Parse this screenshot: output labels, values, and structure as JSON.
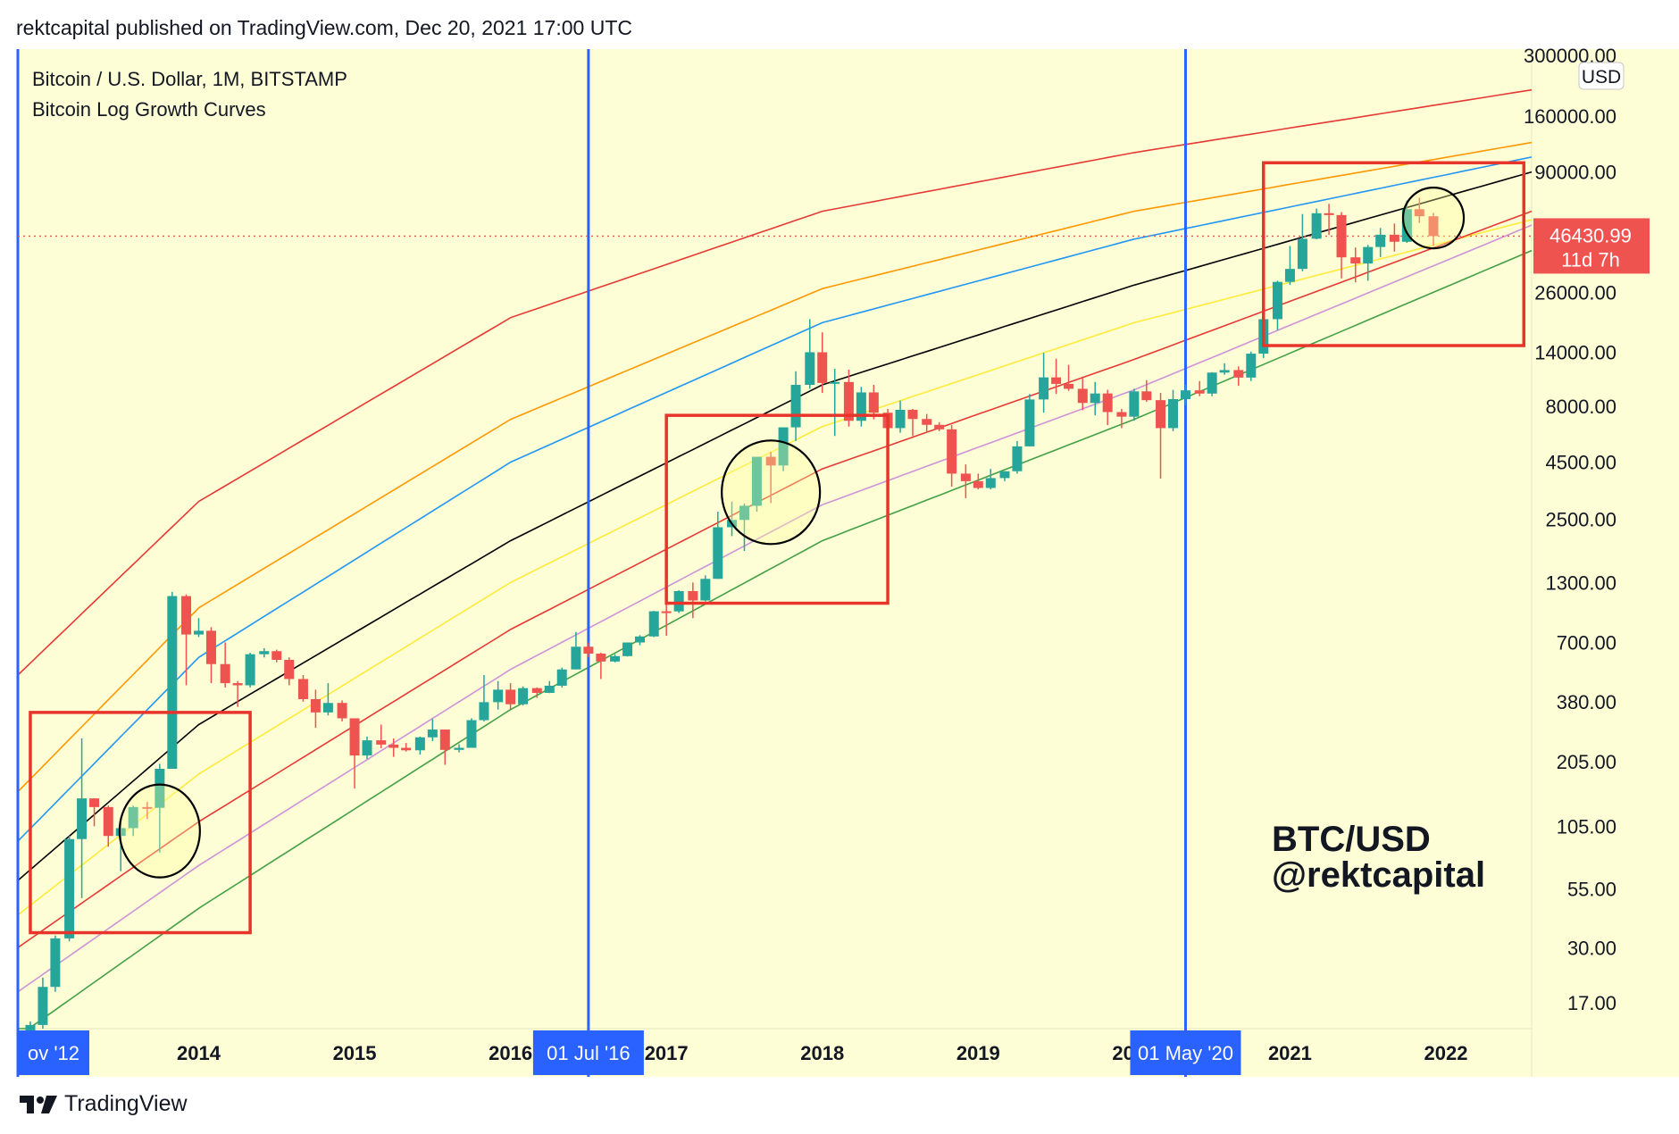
{
  "header": {
    "publish_text": "rektcapital published on TradingView.com, Dec 20, 2021 17:00 UTC"
  },
  "legend": {
    "symbol_line": "Bitcoin / U.S. Dollar, 1M, BITSTAMP",
    "indicator_line": "Bitcoin Log Growth Curves"
  },
  "watermark": {
    "line1": "BTC/USD",
    "line2": "@rektcapital"
  },
  "price_axis": {
    "currency": "USD",
    "ticks": [
      "300000.00",
      "160000.00",
      "90000.00",
      "26000.00",
      "14000.00",
      "8000.00",
      "4500.00",
      "2500.00",
      "1300.00",
      "700.00",
      "380.00",
      "205.00",
      "105.00",
      "55.00",
      "30.00",
      "17.00"
    ],
    "last_price": "46430.99",
    "countdown": "11d 7h"
  },
  "time_axis": {
    "ticks": [
      "2014",
      "2015",
      "2016",
      "2017",
      "2018",
      "2019",
      "2020",
      "2021",
      "2022"
    ],
    "markers": [
      "ov '12",
      "01 Jul '16",
      "01 May '20"
    ]
  },
  "footer": {
    "brand": "TradingView"
  },
  "colors": {
    "background": "#fdfdd6",
    "up": "#26a69a",
    "down": "#ef5350",
    "vline": "#2962ff",
    "box": "#e8342a"
  },
  "chart_data": {
    "type": "candlestick",
    "scale": "log",
    "ylim": [
      13,
      320000
    ],
    "xlim": [
      2012.84,
      2022.55
    ],
    "candles": [
      {
        "t": 2012.92,
        "o": 11,
        "h": 14,
        "l": 10,
        "c": 13.5
      },
      {
        "t": 2013.0,
        "o": 13.5,
        "h": 22,
        "l": 13,
        "c": 20
      },
      {
        "t": 2013.08,
        "o": 20,
        "h": 34,
        "l": 19,
        "c": 33
      },
      {
        "t": 2013.17,
        "o": 33,
        "h": 95,
        "l": 32,
        "c": 92
      },
      {
        "t": 2013.25,
        "o": 92,
        "h": 260,
        "l": 50,
        "c": 140
      },
      {
        "t": 2013.33,
        "o": 140,
        "h": 140,
        "l": 105,
        "c": 128
      },
      {
        "t": 2013.42,
        "o": 128,
        "h": 130,
        "l": 85,
        "c": 95
      },
      {
        "t": 2013.5,
        "o": 95,
        "h": 110,
        "l": 66,
        "c": 103
      },
      {
        "t": 2013.58,
        "o": 103,
        "h": 130,
        "l": 95,
        "c": 128
      },
      {
        "t": 2013.67,
        "o": 128,
        "h": 135,
        "l": 113,
        "c": 127
      },
      {
        "t": 2013.75,
        "o": 127,
        "h": 200,
        "l": 80,
        "c": 190
      },
      {
        "t": 2013.83,
        "o": 190,
        "h": 1180,
        "l": 190,
        "c": 1130
      },
      {
        "t": 2013.92,
        "o": 1130,
        "h": 1150,
        "l": 450,
        "c": 760
      },
      {
        "t": 2014.0,
        "o": 760,
        "h": 900,
        "l": 740,
        "c": 790
      },
      {
        "t": 2014.08,
        "o": 790,
        "h": 820,
        "l": 460,
        "c": 560
      },
      {
        "t": 2014.17,
        "o": 560,
        "h": 700,
        "l": 440,
        "c": 460
      },
      {
        "t": 2014.25,
        "o": 460,
        "h": 470,
        "l": 360,
        "c": 450
      },
      {
        "t": 2014.33,
        "o": 450,
        "h": 630,
        "l": 440,
        "c": 620
      },
      {
        "t": 2014.42,
        "o": 620,
        "h": 660,
        "l": 600,
        "c": 640
      },
      {
        "t": 2014.5,
        "o": 640,
        "h": 650,
        "l": 570,
        "c": 585
      },
      {
        "t": 2014.58,
        "o": 585,
        "h": 600,
        "l": 450,
        "c": 480
      },
      {
        "t": 2014.67,
        "o": 480,
        "h": 500,
        "l": 380,
        "c": 390
      },
      {
        "t": 2014.75,
        "o": 390,
        "h": 430,
        "l": 290,
        "c": 340
      },
      {
        "t": 2014.83,
        "o": 340,
        "h": 460,
        "l": 330,
        "c": 375
      },
      {
        "t": 2014.92,
        "o": 375,
        "h": 385,
        "l": 310,
        "c": 320
      },
      {
        "t": 2015.0,
        "o": 320,
        "h": 320,
        "l": 155,
        "c": 218
      },
      {
        "t": 2015.08,
        "o": 218,
        "h": 265,
        "l": 210,
        "c": 255
      },
      {
        "t": 2015.17,
        "o": 255,
        "h": 300,
        "l": 235,
        "c": 244
      },
      {
        "t": 2015.25,
        "o": 244,
        "h": 260,
        "l": 215,
        "c": 236
      },
      {
        "t": 2015.33,
        "o": 236,
        "h": 248,
        "l": 227,
        "c": 230
      },
      {
        "t": 2015.42,
        "o": 230,
        "h": 265,
        "l": 220,
        "c": 263
      },
      {
        "t": 2015.5,
        "o": 263,
        "h": 318,
        "l": 253,
        "c": 285
      },
      {
        "t": 2015.58,
        "o": 285,
        "h": 285,
        "l": 198,
        "c": 231
      },
      {
        "t": 2015.67,
        "o": 231,
        "h": 245,
        "l": 225,
        "c": 236
      },
      {
        "t": 2015.75,
        "o": 236,
        "h": 320,
        "l": 236,
        "c": 314
      },
      {
        "t": 2015.83,
        "o": 314,
        "h": 500,
        "l": 310,
        "c": 378
      },
      {
        "t": 2015.92,
        "o": 378,
        "h": 470,
        "l": 350,
        "c": 430
      },
      {
        "t": 2016.0,
        "o": 430,
        "h": 460,
        "l": 350,
        "c": 370
      },
      {
        "t": 2016.08,
        "o": 370,
        "h": 445,
        "l": 365,
        "c": 437
      },
      {
        "t": 2016.17,
        "o": 437,
        "h": 440,
        "l": 395,
        "c": 416
      },
      {
        "t": 2016.25,
        "o": 416,
        "h": 470,
        "l": 415,
        "c": 448
      },
      {
        "t": 2016.33,
        "o": 448,
        "h": 540,
        "l": 440,
        "c": 530
      },
      {
        "t": 2016.42,
        "o": 530,
        "h": 780,
        "l": 530,
        "c": 670
      },
      {
        "t": 2016.5,
        "o": 670,
        "h": 700,
        "l": 600,
        "c": 624
      },
      {
        "t": 2016.58,
        "o": 624,
        "h": 630,
        "l": 480,
        "c": 575
      },
      {
        "t": 2016.67,
        "o": 575,
        "h": 620,
        "l": 570,
        "c": 608
      },
      {
        "t": 2016.75,
        "o": 608,
        "h": 640,
        "l": 605,
        "c": 700
      },
      {
        "t": 2016.83,
        "o": 700,
        "h": 755,
        "l": 680,
        "c": 745
      },
      {
        "t": 2016.92,
        "o": 745,
        "h": 970,
        "l": 740,
        "c": 966
      },
      {
        "t": 2017.0,
        "o": 966,
        "h": 1150,
        "l": 750,
        "c": 965
      },
      {
        "t": 2017.08,
        "o": 965,
        "h": 1200,
        "l": 950,
        "c": 1190
      },
      {
        "t": 2017.17,
        "o": 1190,
        "h": 1300,
        "l": 900,
        "c": 1080
      },
      {
        "t": 2017.25,
        "o": 1080,
        "h": 1400,
        "l": 1070,
        "c": 1350
      },
      {
        "t": 2017.33,
        "o": 1350,
        "h": 2700,
        "l": 1350,
        "c": 2300
      },
      {
        "t": 2017.42,
        "o": 2300,
        "h": 3000,
        "l": 2100,
        "c": 2480
      },
      {
        "t": 2017.5,
        "o": 2480,
        "h": 2940,
        "l": 1800,
        "c": 2870
      },
      {
        "t": 2017.58,
        "o": 2870,
        "h": 4730,
        "l": 2700,
        "c": 4760
      },
      {
        "t": 2017.67,
        "o": 4760,
        "h": 5000,
        "l": 2950,
        "c": 4350
      },
      {
        "t": 2017.75,
        "o": 4350,
        "h": 6400,
        "l": 4100,
        "c": 6450
      },
      {
        "t": 2017.83,
        "o": 6450,
        "h": 11500,
        "l": 5600,
        "c": 10000
      },
      {
        "t": 2017.92,
        "o": 10000,
        "h": 19700,
        "l": 9600,
        "c": 14000
      },
      {
        "t": 2018.0,
        "o": 14000,
        "h": 17200,
        "l": 9200,
        "c": 10200
      },
      {
        "t": 2018.08,
        "o": 10200,
        "h": 11800,
        "l": 5900,
        "c": 10300
      },
      {
        "t": 2018.17,
        "o": 10300,
        "h": 11700,
        "l": 6500,
        "c": 6900
      },
      {
        "t": 2018.25,
        "o": 6900,
        "h": 9800,
        "l": 6500,
        "c": 9250
      },
      {
        "t": 2018.33,
        "o": 9250,
        "h": 10000,
        "l": 7000,
        "c": 7500
      },
      {
        "t": 2018.42,
        "o": 7500,
        "h": 7800,
        "l": 5800,
        "c": 6400
      },
      {
        "t": 2018.5,
        "o": 6400,
        "h": 8500,
        "l": 6100,
        "c": 7730
      },
      {
        "t": 2018.58,
        "o": 7730,
        "h": 7800,
        "l": 5900,
        "c": 7030
      },
      {
        "t": 2018.67,
        "o": 7030,
        "h": 7400,
        "l": 6100,
        "c": 6620
      },
      {
        "t": 2018.75,
        "o": 6620,
        "h": 6800,
        "l": 6200,
        "c": 6320
      },
      {
        "t": 2018.83,
        "o": 6320,
        "h": 6600,
        "l": 3500,
        "c": 4000
      },
      {
        "t": 2018.92,
        "o": 4000,
        "h": 4400,
        "l": 3100,
        "c": 3700
      },
      {
        "t": 2019.0,
        "o": 3700,
        "h": 4000,
        "l": 3400,
        "c": 3450
      },
      {
        "t": 2019.08,
        "o": 3450,
        "h": 4200,
        "l": 3400,
        "c": 3820
      },
      {
        "t": 2019.17,
        "o": 3820,
        "h": 4100,
        "l": 3700,
        "c": 4100
      },
      {
        "t": 2019.25,
        "o": 4100,
        "h": 5600,
        "l": 4000,
        "c": 5300
      },
      {
        "t": 2019.33,
        "o": 5300,
        "h": 9100,
        "l": 5300,
        "c": 8600
      },
      {
        "t": 2019.42,
        "o": 8600,
        "h": 13900,
        "l": 7500,
        "c": 10800
      },
      {
        "t": 2019.5,
        "o": 10800,
        "h": 13100,
        "l": 9100,
        "c": 10100
      },
      {
        "t": 2019.58,
        "o": 10100,
        "h": 12300,
        "l": 9400,
        "c": 9600
      },
      {
        "t": 2019.67,
        "o": 9600,
        "h": 10900,
        "l": 7700,
        "c": 8300
      },
      {
        "t": 2019.75,
        "o": 8300,
        "h": 10300,
        "l": 7300,
        "c": 9150
      },
      {
        "t": 2019.83,
        "o": 9150,
        "h": 9500,
        "l": 6600,
        "c": 7550
      },
      {
        "t": 2019.92,
        "o": 7550,
        "h": 7800,
        "l": 6400,
        "c": 7200
      },
      {
        "t": 2020.0,
        "o": 7200,
        "h": 9600,
        "l": 6900,
        "c": 9350
      },
      {
        "t": 2020.08,
        "o": 9350,
        "h": 10500,
        "l": 8400,
        "c": 8540
      },
      {
        "t": 2020.17,
        "o": 8540,
        "h": 9200,
        "l": 3800,
        "c": 6400
      },
      {
        "t": 2020.25,
        "o": 6400,
        "h": 9500,
        "l": 6200,
        "c": 8630
      },
      {
        "t": 2020.33,
        "o": 8630,
        "h": 10000,
        "l": 8100,
        "c": 9450
      },
      {
        "t": 2020.42,
        "o": 9450,
        "h": 10400,
        "l": 8900,
        "c": 9140
      },
      {
        "t": 2020.5,
        "o": 9140,
        "h": 11400,
        "l": 8900,
        "c": 11350
      },
      {
        "t": 2020.58,
        "o": 11350,
        "h": 12500,
        "l": 11100,
        "c": 11650
      },
      {
        "t": 2020.67,
        "o": 11650,
        "h": 12100,
        "l": 9900,
        "c": 10780
      },
      {
        "t": 2020.75,
        "o": 10780,
        "h": 14100,
        "l": 10400,
        "c": 13800
      },
      {
        "t": 2020.83,
        "o": 13800,
        "h": 19900,
        "l": 13200,
        "c": 19700
      },
      {
        "t": 2020.92,
        "o": 19700,
        "h": 29300,
        "l": 17600,
        "c": 28950
      },
      {
        "t": 2021.0,
        "o": 28950,
        "h": 41900,
        "l": 28100,
        "c": 33100
      },
      {
        "t": 2021.08,
        "o": 33100,
        "h": 58300,
        "l": 32300,
        "c": 45200
      },
      {
        "t": 2021.17,
        "o": 45200,
        "h": 61700,
        "l": 44900,
        "c": 58800
      },
      {
        "t": 2021.25,
        "o": 58800,
        "h": 64800,
        "l": 47000,
        "c": 57700
      },
      {
        "t": 2021.33,
        "o": 57700,
        "h": 59500,
        "l": 30000,
        "c": 37300
      },
      {
        "t": 2021.42,
        "o": 37300,
        "h": 41300,
        "l": 28800,
        "c": 35000
      },
      {
        "t": 2021.5,
        "o": 35000,
        "h": 42400,
        "l": 29300,
        "c": 41500
      },
      {
        "t": 2021.58,
        "o": 41500,
        "h": 50500,
        "l": 37400,
        "c": 47100
      },
      {
        "t": 2021.67,
        "o": 47100,
        "h": 52900,
        "l": 39600,
        "c": 43800
      },
      {
        "t": 2021.75,
        "o": 43800,
        "h": 67000,
        "l": 43300,
        "c": 61300
      },
      {
        "t": 2021.83,
        "o": 61300,
        "h": 69000,
        "l": 53200,
        "c": 57000
      },
      {
        "t": 2021.92,
        "o": 57000,
        "h": 59000,
        "l": 42000,
        "c": 46430.99
      }
    ],
    "curves": [
      {
        "color": "#e53935",
        "pts": [
          [
            2012.84,
            500
          ],
          [
            2014.0,
            3000
          ],
          [
            2016.0,
            20000
          ],
          [
            2018.0,
            60000
          ],
          [
            2020.0,
            110000
          ],
          [
            2022.55,
            210000
          ]
        ]
      },
      {
        "color": "#ff9800",
        "pts": [
          [
            2012.84,
            150
          ],
          [
            2014.0,
            1000
          ],
          [
            2016.0,
            7000
          ],
          [
            2018.0,
            27000
          ],
          [
            2020.0,
            60000
          ],
          [
            2022.55,
            122000
          ]
        ]
      },
      {
        "color": "#2196f3",
        "pts": [
          [
            2012.84,
            90
          ],
          [
            2014.0,
            600
          ],
          [
            2016.0,
            4500
          ],
          [
            2018.0,
            19000
          ],
          [
            2020.0,
            45000
          ],
          [
            2022.55,
            105000
          ]
        ]
      },
      {
        "color": "#000000",
        "pts": [
          [
            2012.84,
            60
          ],
          [
            2014.0,
            300
          ],
          [
            2016.0,
            2000
          ],
          [
            2018.0,
            10000
          ],
          [
            2020.0,
            28000
          ],
          [
            2022.55,
            90000
          ]
        ]
      },
      {
        "color": "#ffeb3b",
        "pts": [
          [
            2012.84,
            42
          ],
          [
            2014.0,
            180
          ],
          [
            2016.0,
            1300
          ],
          [
            2018.0,
            6500
          ],
          [
            2020.0,
            19000
          ],
          [
            2022.55,
            55000
          ]
        ]
      },
      {
        "color": "#e53935",
        "pts": [
          [
            2012.84,
            30
          ],
          [
            2014.0,
            110
          ],
          [
            2016.0,
            800
          ],
          [
            2018.0,
            4200
          ],
          [
            2020.0,
            13000
          ],
          [
            2022.55,
            60000
          ]
        ]
      },
      {
        "color": "#ce93d8",
        "pts": [
          [
            2012.84,
            19
          ],
          [
            2014.0,
            70
          ],
          [
            2016.0,
            530
          ],
          [
            2018.0,
            2900
          ],
          [
            2020.0,
            9500
          ],
          [
            2022.55,
            52000
          ]
        ]
      },
      {
        "color": "#43a047",
        "pts": [
          [
            2012.84,
            12
          ],
          [
            2014.0,
            45
          ],
          [
            2016.0,
            350
          ],
          [
            2018.0,
            2000
          ],
          [
            2020.0,
            7000
          ],
          [
            2022.55,
            40000
          ]
        ]
      }
    ],
    "vlines": [
      2012.84,
      2016.5,
      2020.33
    ],
    "boxes": [
      {
        "x": [
          2012.92,
          2014.33
        ],
        "y": [
          35,
          340
        ]
      },
      {
        "x": [
          2017.0,
          2018.42
        ],
        "y": [
          1050,
          7300
        ]
      },
      {
        "x": [
          2020.83,
          2022.5
        ],
        "y": [
          15000,
          99000
        ]
      }
    ],
    "circles": [
      {
        "cx": 2013.75,
        "cy": 100,
        "rx": 45,
        "ry": 52
      },
      {
        "cx": 2017.67,
        "cy": 3300,
        "rx": 55,
        "ry": 58
      },
      {
        "cx": 2021.92,
        "cy": 56000,
        "rx": 34,
        "ry": 34
      }
    ]
  }
}
